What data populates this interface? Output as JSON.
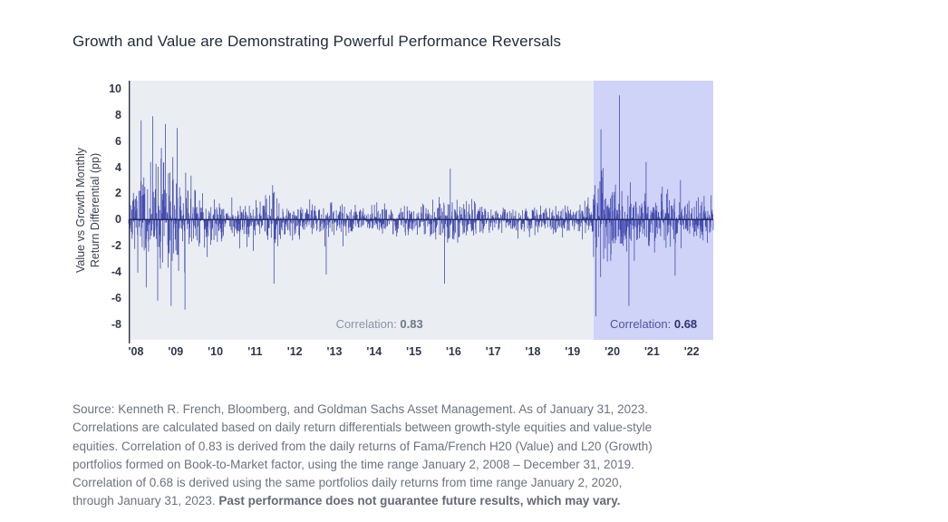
{
  "title": "Growth and Value are Demonstrating Powerful Performance Reversals",
  "chart_data": {
    "type": "bar",
    "subtype": "daily return differential plotted as dense vertical bars around zero",
    "title": "Growth and Value are Demonstrating Powerful Performance Reversals",
    "ylabel": "Value vs Growth Monthly\nReturn Differential (pp)",
    "xlabel": "",
    "y_ticks": [
      10,
      8,
      6,
      4,
      2,
      0,
      "-2",
      "-4",
      "-6",
      "-8"
    ],
    "y_tick_values": [
      10,
      8,
      6,
      4,
      2,
      0,
      -2,
      -4,
      -6,
      -8
    ],
    "ylim": [
      -9.2,
      10.62
    ],
    "x_range_years": [
      2008.0,
      2023.08
    ],
    "x_tick_labels": [
      "'08",
      "'09",
      "'10",
      "'11",
      "'12",
      "'13",
      "'14",
      "'15",
      "'16",
      "'17",
      "'18",
      "'19",
      "'20",
      "'21",
      "'22"
    ],
    "grid": false,
    "legend": false,
    "zero_line": 0,
    "regions": [
      {
        "name": "correlation-period-1",
        "t_start": 2008.0,
        "t_end": 2020.0,
        "background": "#eaeef3",
        "label": "Correlation: ",
        "value": "0.83"
      },
      {
        "name": "correlation-period-2",
        "t_start": 2020.0,
        "t_end": 2023.08,
        "background": "#cfd3f8",
        "label": "Correlation: ",
        "value": "0.68"
      }
    ],
    "bar_color": "#444CAF",
    "zero_line_color": "#1b2140",
    "axis_line_color": "#2b3142",
    "volatility_envelope": [
      [
        2008.0,
        2.3
      ],
      [
        2008.2,
        3.2
      ],
      [
        2008.3,
        6.2
      ],
      [
        2008.6,
        7.0
      ],
      [
        2008.9,
        7.4
      ],
      [
        2009.2,
        6.6
      ],
      [
        2009.5,
        5.2
      ],
      [
        2009.8,
        3.8
      ],
      [
        2010.2,
        3.3
      ],
      [
        2010.6,
        2.6
      ],
      [
        2011.0,
        2.3
      ],
      [
        2011.5,
        2.8
      ],
      [
        2011.8,
        3.3
      ],
      [
        2012.1,
        2.5
      ],
      [
        2012.5,
        2.1
      ],
      [
        2013.0,
        1.9
      ],
      [
        2013.5,
        1.9
      ],
      [
        2014.0,
        1.7
      ],
      [
        2014.5,
        1.6
      ],
      [
        2015.0,
        1.9
      ],
      [
        2015.5,
        2.2
      ],
      [
        2015.9,
        2.7
      ],
      [
        2016.2,
        3.1
      ],
      [
        2016.5,
        2.8
      ],
      [
        2016.9,
        2.3
      ],
      [
        2017.3,
        1.7
      ],
      [
        2017.8,
        1.5
      ],
      [
        2018.2,
        1.8
      ],
      [
        2018.6,
        1.7
      ],
      [
        2019.0,
        1.9
      ],
      [
        2019.5,
        1.7
      ],
      [
        2019.93,
        1.9
      ],
      [
        2020.0,
        4.0
      ],
      [
        2020.15,
        6.9
      ],
      [
        2020.35,
        6.2
      ],
      [
        2020.6,
        4.4
      ],
      [
        2020.8,
        5.2
      ],
      [
        2021.0,
        4.0
      ],
      [
        2021.3,
        3.6
      ],
      [
        2021.7,
        3.3
      ],
      [
        2022.0,
        3.4
      ],
      [
        2022.4,
        3.0
      ],
      [
        2022.8,
        2.9
      ],
      [
        2023.08,
        2.6
      ]
    ],
    "spike_events": [
      [
        2008.32,
        7.6
      ],
      [
        2008.45,
        -5.2
      ],
      [
        2008.62,
        7.9
      ],
      [
        2008.75,
        -6.2
      ],
      [
        2008.95,
        7.3
      ],
      [
        2009.1,
        -6.6
      ],
      [
        2009.25,
        7.0
      ],
      [
        2009.45,
        -6.9
      ],
      [
        2011.75,
        -4.9
      ],
      [
        2013.1,
        -4.2
      ],
      [
        2016.15,
        -4.9
      ],
      [
        2016.3,
        3.9
      ],
      [
        2020.05,
        -7.4
      ],
      [
        2020.18,
        6.9
      ],
      [
        2020.66,
        9.5
      ],
      [
        2020.9,
        -6.6
      ],
      [
        2021.35,
        4.4
      ],
      [
        2022.1,
        -4.3
      ]
    ],
    "bars_per_year": 115,
    "seed": 7
  },
  "source": {
    "text": "Source: Kenneth R. French, Bloomberg, and Goldman Sachs Asset Management. As of January 31, 2023.\nCorrelations are calculated based on daily return differentials between growth-style equities and value-style\nequities. Correlation of 0.83 is derived from the daily returns of Fama/French H20 (Value) and L20 (Growth)\nportfolios formed on Book-to-Market factor, using the time range January 2, 2008 – December 31, 2019.\nCorrelation of 0.68 is derived using the same portfolios daily returns from time range January 2, 2020,\nthrough January 31, 2023. ",
    "bold": "Past performance does not guarantee future results, which may vary."
  }
}
